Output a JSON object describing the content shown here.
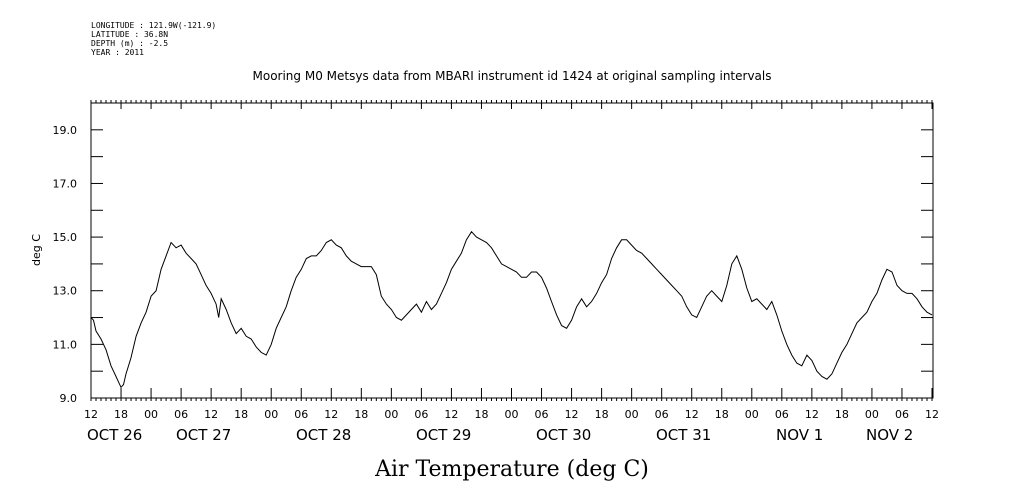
{
  "header": {
    "metadata_lines": [
      "LONGITUDE : 121.9W(-121.9)",
      "LATITUDE : 36.8N",
      "DEPTH (m) : -2.5",
      "YEAR : 2011"
    ]
  },
  "chart_data": {
    "type": "line",
    "title": "Mooring M0 Metsys data from MBARI instrument id 1424 at original sampling intervals",
    "xlabel": "Air Temperature (deg C)",
    "ylabel": "deg C",
    "ylim": [
      9.0,
      20.0
    ],
    "y_ticks": [
      "9.0",
      "11.0",
      "13.0",
      "15.0",
      "17.0",
      "19.0"
    ],
    "x_hour_ticks": [
      "12",
      "18",
      "00",
      "06",
      "12",
      "18",
      "00",
      "06",
      "12",
      "18",
      "00",
      "06",
      "12",
      "18",
      "00",
      "06",
      "12",
      "18",
      "00",
      "06",
      "12",
      "18",
      "00",
      "06",
      "12",
      "18",
      "00",
      "06",
      "12"
    ],
    "x_day_labels": [
      "OCT 26",
      "OCT 27",
      "OCT 28",
      "OCT 29",
      "OCT 30",
      "OCT 31",
      "NOV 1",
      "NOV 2"
    ],
    "x_day_label_hours": [
      0,
      42,
      108,
      168,
      228,
      288,
      348,
      408
    ],
    "x_range_hours": [
      0,
      168
    ],
    "x_unit": "hours since 2011-10-26 12:00",
    "grid": false,
    "series": [
      {
        "color": "#000000",
        "points": [
          [
            0.0,
            12.0
          ],
          [
            0.5,
            11.9
          ],
          [
            1.0,
            11.5
          ],
          [
            2.0,
            11.2
          ],
          [
            3.0,
            10.8
          ],
          [
            4.0,
            10.2
          ],
          [
            5.0,
            9.8
          ],
          [
            5.5,
            9.6
          ],
          [
            6.0,
            9.4
          ],
          [
            6.5,
            9.5
          ],
          [
            7.0,
            9.9
          ],
          [
            8.0,
            10.5
          ],
          [
            9.0,
            11.3
          ],
          [
            10.0,
            11.8
          ],
          [
            11.0,
            12.2
          ],
          [
            12.0,
            12.8
          ],
          [
            13.0,
            13.0
          ],
          [
            14.0,
            13.8
          ],
          [
            15.0,
            14.3
          ],
          [
            16.0,
            14.8
          ],
          [
            17.0,
            14.6
          ],
          [
            18.0,
            14.7
          ],
          [
            19.0,
            14.4
          ],
          [
            20.0,
            14.2
          ],
          [
            21.0,
            14.0
          ],
          [
            22.0,
            13.6
          ],
          [
            23.0,
            13.2
          ],
          [
            24.0,
            12.9
          ],
          [
            25.0,
            12.5
          ],
          [
            25.5,
            12.0
          ],
          [
            26.0,
            12.7
          ],
          [
            27.0,
            12.3
          ],
          [
            28.0,
            11.8
          ],
          [
            29.0,
            11.4
          ],
          [
            30.0,
            11.6
          ],
          [
            31.0,
            11.3
          ],
          [
            32.0,
            11.2
          ],
          [
            33.0,
            10.9
          ],
          [
            34.0,
            10.7
          ],
          [
            35.0,
            10.6
          ],
          [
            36.0,
            11.0
          ],
          [
            37.0,
            11.6
          ],
          [
            38.0,
            12.0
          ],
          [
            39.0,
            12.4
          ],
          [
            40.0,
            13.0
          ],
          [
            41.0,
            13.5
          ],
          [
            42.0,
            13.8
          ],
          [
            43.0,
            14.2
          ],
          [
            44.0,
            14.3
          ],
          [
            45.0,
            14.3
          ],
          [
            46.0,
            14.5
          ],
          [
            47.0,
            14.8
          ],
          [
            48.0,
            14.9
          ],
          [
            49.0,
            14.7
          ],
          [
            50.0,
            14.6
          ],
          [
            51.0,
            14.3
          ],
          [
            52.0,
            14.1
          ],
          [
            53.0,
            14.0
          ],
          [
            54.0,
            13.9
          ],
          [
            55.0,
            13.9
          ],
          [
            56.0,
            13.9
          ],
          [
            57.0,
            13.6
          ],
          [
            58.0,
            12.8
          ],
          [
            59.0,
            12.5
          ],
          [
            60.0,
            12.3
          ],
          [
            61.0,
            12.0
          ],
          [
            62.0,
            11.9
          ],
          [
            63.0,
            12.1
          ],
          [
            64.0,
            12.3
          ],
          [
            65.0,
            12.5
          ],
          [
            66.0,
            12.2
          ],
          [
            67.0,
            12.6
          ],
          [
            68.0,
            12.3
          ],
          [
            69.0,
            12.5
          ],
          [
            70.0,
            12.9
          ],
          [
            71.0,
            13.3
          ],
          [
            72.0,
            13.8
          ],
          [
            73.0,
            14.1
          ],
          [
            74.0,
            14.4
          ],
          [
            75.0,
            14.9
          ],
          [
            76.0,
            15.2
          ],
          [
            77.0,
            15.0
          ],
          [
            78.0,
            14.9
          ],
          [
            79.0,
            14.8
          ],
          [
            80.0,
            14.6
          ],
          [
            81.0,
            14.3
          ],
          [
            82.0,
            14.0
          ],
          [
            83.0,
            13.9
          ],
          [
            84.0,
            13.8
          ],
          [
            85.0,
            13.7
          ],
          [
            86.0,
            13.5
          ],
          [
            87.0,
            13.5
          ],
          [
            88.0,
            13.7
          ],
          [
            89.0,
            13.7
          ],
          [
            90.0,
            13.5
          ],
          [
            91.0,
            13.1
          ],
          [
            92.0,
            12.6
          ],
          [
            93.0,
            12.1
          ],
          [
            94.0,
            11.7
          ],
          [
            95.0,
            11.6
          ],
          [
            96.0,
            11.9
          ],
          [
            97.0,
            12.4
          ],
          [
            98.0,
            12.7
          ],
          [
            99.0,
            12.4
          ],
          [
            100.0,
            12.6
          ],
          [
            101.0,
            12.9
          ],
          [
            102.0,
            13.3
          ],
          [
            103.0,
            13.6
          ],
          [
            104.0,
            14.2
          ],
          [
            105.0,
            14.6
          ],
          [
            106.0,
            14.9
          ],
          [
            107.0,
            14.9
          ],
          [
            108.0,
            14.7
          ],
          [
            109.0,
            14.5
          ],
          [
            110.0,
            14.4
          ],
          [
            111.0,
            14.2
          ],
          [
            112.0,
            14.0
          ],
          [
            113.0,
            13.8
          ],
          [
            114.0,
            13.6
          ],
          [
            115.0,
            13.4
          ],
          [
            116.0,
            13.2
          ],
          [
            117.0,
            13.0
          ],
          [
            118.0,
            12.8
          ],
          [
            119.0,
            12.4
          ],
          [
            120.0,
            12.1
          ],
          [
            121.0,
            12.0
          ],
          [
            122.0,
            12.4
          ],
          [
            123.0,
            12.8
          ],
          [
            124.0,
            13.0
          ],
          [
            125.0,
            12.8
          ],
          [
            126.0,
            12.6
          ],
          [
            127.0,
            13.2
          ],
          [
            128.0,
            14.0
          ],
          [
            129.0,
            14.3
          ],
          [
            130.0,
            13.8
          ],
          [
            131.0,
            13.1
          ],
          [
            132.0,
            12.6
          ],
          [
            133.0,
            12.7
          ],
          [
            134.0,
            12.5
          ],
          [
            135.0,
            12.3
          ],
          [
            136.0,
            12.6
          ],
          [
            137.0,
            12.1
          ],
          [
            138.0,
            11.5
          ],
          [
            139.0,
            11.0
          ],
          [
            140.0,
            10.6
          ],
          [
            141.0,
            10.3
          ],
          [
            142.0,
            10.2
          ],
          [
            143.0,
            10.6
          ],
          [
            144.0,
            10.4
          ],
          [
            145.0,
            10.0
          ],
          [
            146.0,
            9.8
          ],
          [
            147.0,
            9.7
          ],
          [
            148.0,
            9.9
          ],
          [
            149.0,
            10.3
          ],
          [
            150.0,
            10.7
          ],
          [
            151.0,
            11.0
          ],
          [
            152.0,
            11.4
          ],
          [
            153.0,
            11.8
          ],
          [
            154.0,
            12.0
          ],
          [
            155.0,
            12.2
          ],
          [
            156.0,
            12.6
          ],
          [
            157.0,
            12.9
          ],
          [
            158.0,
            13.4
          ],
          [
            159.0,
            13.8
          ],
          [
            160.0,
            13.7
          ],
          [
            161.0,
            13.2
          ],
          [
            162.0,
            13.0
          ],
          [
            163.0,
            12.9
          ],
          [
            164.0,
            12.9
          ],
          [
            165.0,
            12.7
          ],
          [
            166.0,
            12.4
          ],
          [
            167.0,
            12.2
          ],
          [
            168.0,
            12.1
          ]
        ]
      }
    ]
  }
}
